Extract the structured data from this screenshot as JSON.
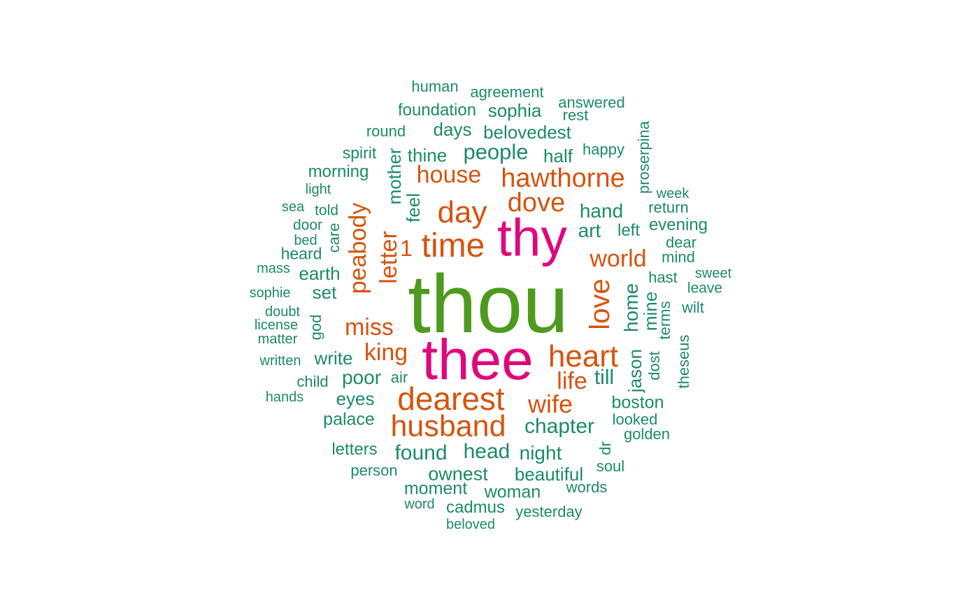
{
  "chart_data": {
    "type": "wordcloud",
    "colors": {
      "small": "#1b8a6b",
      "medium": "#d4540e",
      "large": "#e0077d",
      "largest": "#4d9a1f"
    },
    "words": [
      {
        "text": "thou",
        "color": "largest"
      },
      {
        "text": "thee",
        "color": "large"
      },
      {
        "text": "thy",
        "color": "large"
      },
      {
        "text": "dearest",
        "color": "medium"
      },
      {
        "text": "husband",
        "color": "medium"
      },
      {
        "text": "time",
        "color": "medium"
      },
      {
        "text": "day",
        "color": "medium"
      },
      {
        "text": "heart",
        "color": "medium"
      },
      {
        "text": "love",
        "color": "medium"
      },
      {
        "text": "hawthorne",
        "color": "medium"
      },
      {
        "text": "dove",
        "color": "medium"
      },
      {
        "text": "house",
        "color": "medium"
      },
      {
        "text": "peabody",
        "color": "medium"
      },
      {
        "text": "letter",
        "color": "medium"
      },
      {
        "text": "miss",
        "color": "medium"
      },
      {
        "text": "king",
        "color": "medium"
      },
      {
        "text": "wife",
        "color": "medium"
      },
      {
        "text": "world",
        "color": "medium"
      },
      {
        "text": "life",
        "color": "medium"
      },
      {
        "text": "1",
        "color": "medium"
      },
      {
        "text": "people",
        "color": "small"
      },
      {
        "text": "mother",
        "color": "small"
      },
      {
        "text": "feel",
        "color": "small"
      },
      {
        "text": "hand",
        "color": "small"
      },
      {
        "text": "art",
        "color": "small"
      },
      {
        "text": "chapter",
        "color": "small"
      },
      {
        "text": "home",
        "color": "small"
      },
      {
        "text": "mine",
        "color": "small"
      },
      {
        "text": "jason",
        "color": "small"
      },
      {
        "text": "found",
        "color": "small"
      },
      {
        "text": "head",
        "color": "small"
      },
      {
        "text": "night",
        "color": "small"
      },
      {
        "text": "ownest",
        "color": "small"
      },
      {
        "text": "beautiful",
        "color": "small"
      },
      {
        "text": "boston",
        "color": "small"
      },
      {
        "text": "till",
        "color": "small"
      },
      {
        "text": "poor",
        "color": "small"
      },
      {
        "text": "eyes",
        "color": "small"
      },
      {
        "text": "write",
        "color": "small"
      },
      {
        "text": "palace",
        "color": "small"
      },
      {
        "text": "moment",
        "color": "small"
      },
      {
        "text": "woman",
        "color": "small"
      },
      {
        "text": "cadmus",
        "color": "small"
      },
      {
        "text": "earth",
        "color": "small"
      },
      {
        "text": "set",
        "color": "small"
      },
      {
        "text": "god",
        "color": "small"
      },
      {
        "text": "care",
        "color": "small"
      },
      {
        "text": "heard",
        "color": "small"
      },
      {
        "text": "days",
        "color": "small"
      },
      {
        "text": "sophia",
        "color": "small"
      },
      {
        "text": "foundation",
        "color": "small"
      },
      {
        "text": "belovedest",
        "color": "small"
      },
      {
        "text": "thine",
        "color": "small"
      },
      {
        "text": "half",
        "color": "small"
      },
      {
        "text": "happy",
        "color": "small"
      },
      {
        "text": "spirit",
        "color": "small"
      },
      {
        "text": "morning",
        "color": "small"
      },
      {
        "text": "round",
        "color": "small"
      },
      {
        "text": "human",
        "color": "small"
      },
      {
        "text": "agreement",
        "color": "small"
      },
      {
        "text": "answered",
        "color": "small"
      },
      {
        "text": "rest",
        "color": "small"
      },
      {
        "text": "proserpina",
        "color": "small"
      },
      {
        "text": "week",
        "color": "small"
      },
      {
        "text": "return",
        "color": "small"
      },
      {
        "text": "evening",
        "color": "small"
      },
      {
        "text": "left",
        "color": "small"
      },
      {
        "text": "dear",
        "color": "small"
      },
      {
        "text": "mind",
        "color": "small"
      },
      {
        "text": "hast",
        "color": "small"
      },
      {
        "text": "sweet",
        "color": "small"
      },
      {
        "text": "leave",
        "color": "small"
      },
      {
        "text": "wilt",
        "color": "small"
      },
      {
        "text": "terms",
        "color": "small"
      },
      {
        "text": "dost",
        "color": "small"
      },
      {
        "text": "theseus",
        "color": "small"
      },
      {
        "text": "looked",
        "color": "small"
      },
      {
        "text": "golden",
        "color": "small"
      },
      {
        "text": "dr",
        "color": "small"
      },
      {
        "text": "soul",
        "color": "small"
      },
      {
        "text": "words",
        "color": "small"
      },
      {
        "text": "yesterday",
        "color": "small"
      },
      {
        "text": "beloved",
        "color": "small"
      },
      {
        "text": "word",
        "color": "small"
      },
      {
        "text": "person",
        "color": "small"
      },
      {
        "text": "letters",
        "color": "small"
      },
      {
        "text": "hands",
        "color": "small"
      },
      {
        "text": "child",
        "color": "small"
      },
      {
        "text": "air",
        "color": "small"
      },
      {
        "text": "written",
        "color": "small"
      },
      {
        "text": "matter",
        "color": "small"
      },
      {
        "text": "license",
        "color": "small"
      },
      {
        "text": "doubt",
        "color": "small"
      },
      {
        "text": "sophie",
        "color": "small"
      },
      {
        "text": "mass",
        "color": "small"
      },
      {
        "text": "bed",
        "color": "small"
      },
      {
        "text": "door",
        "color": "small"
      },
      {
        "text": "told",
        "color": "small"
      },
      {
        "text": "sea",
        "color": "small"
      },
      {
        "text": "light",
        "color": "small"
      }
    ]
  }
}
